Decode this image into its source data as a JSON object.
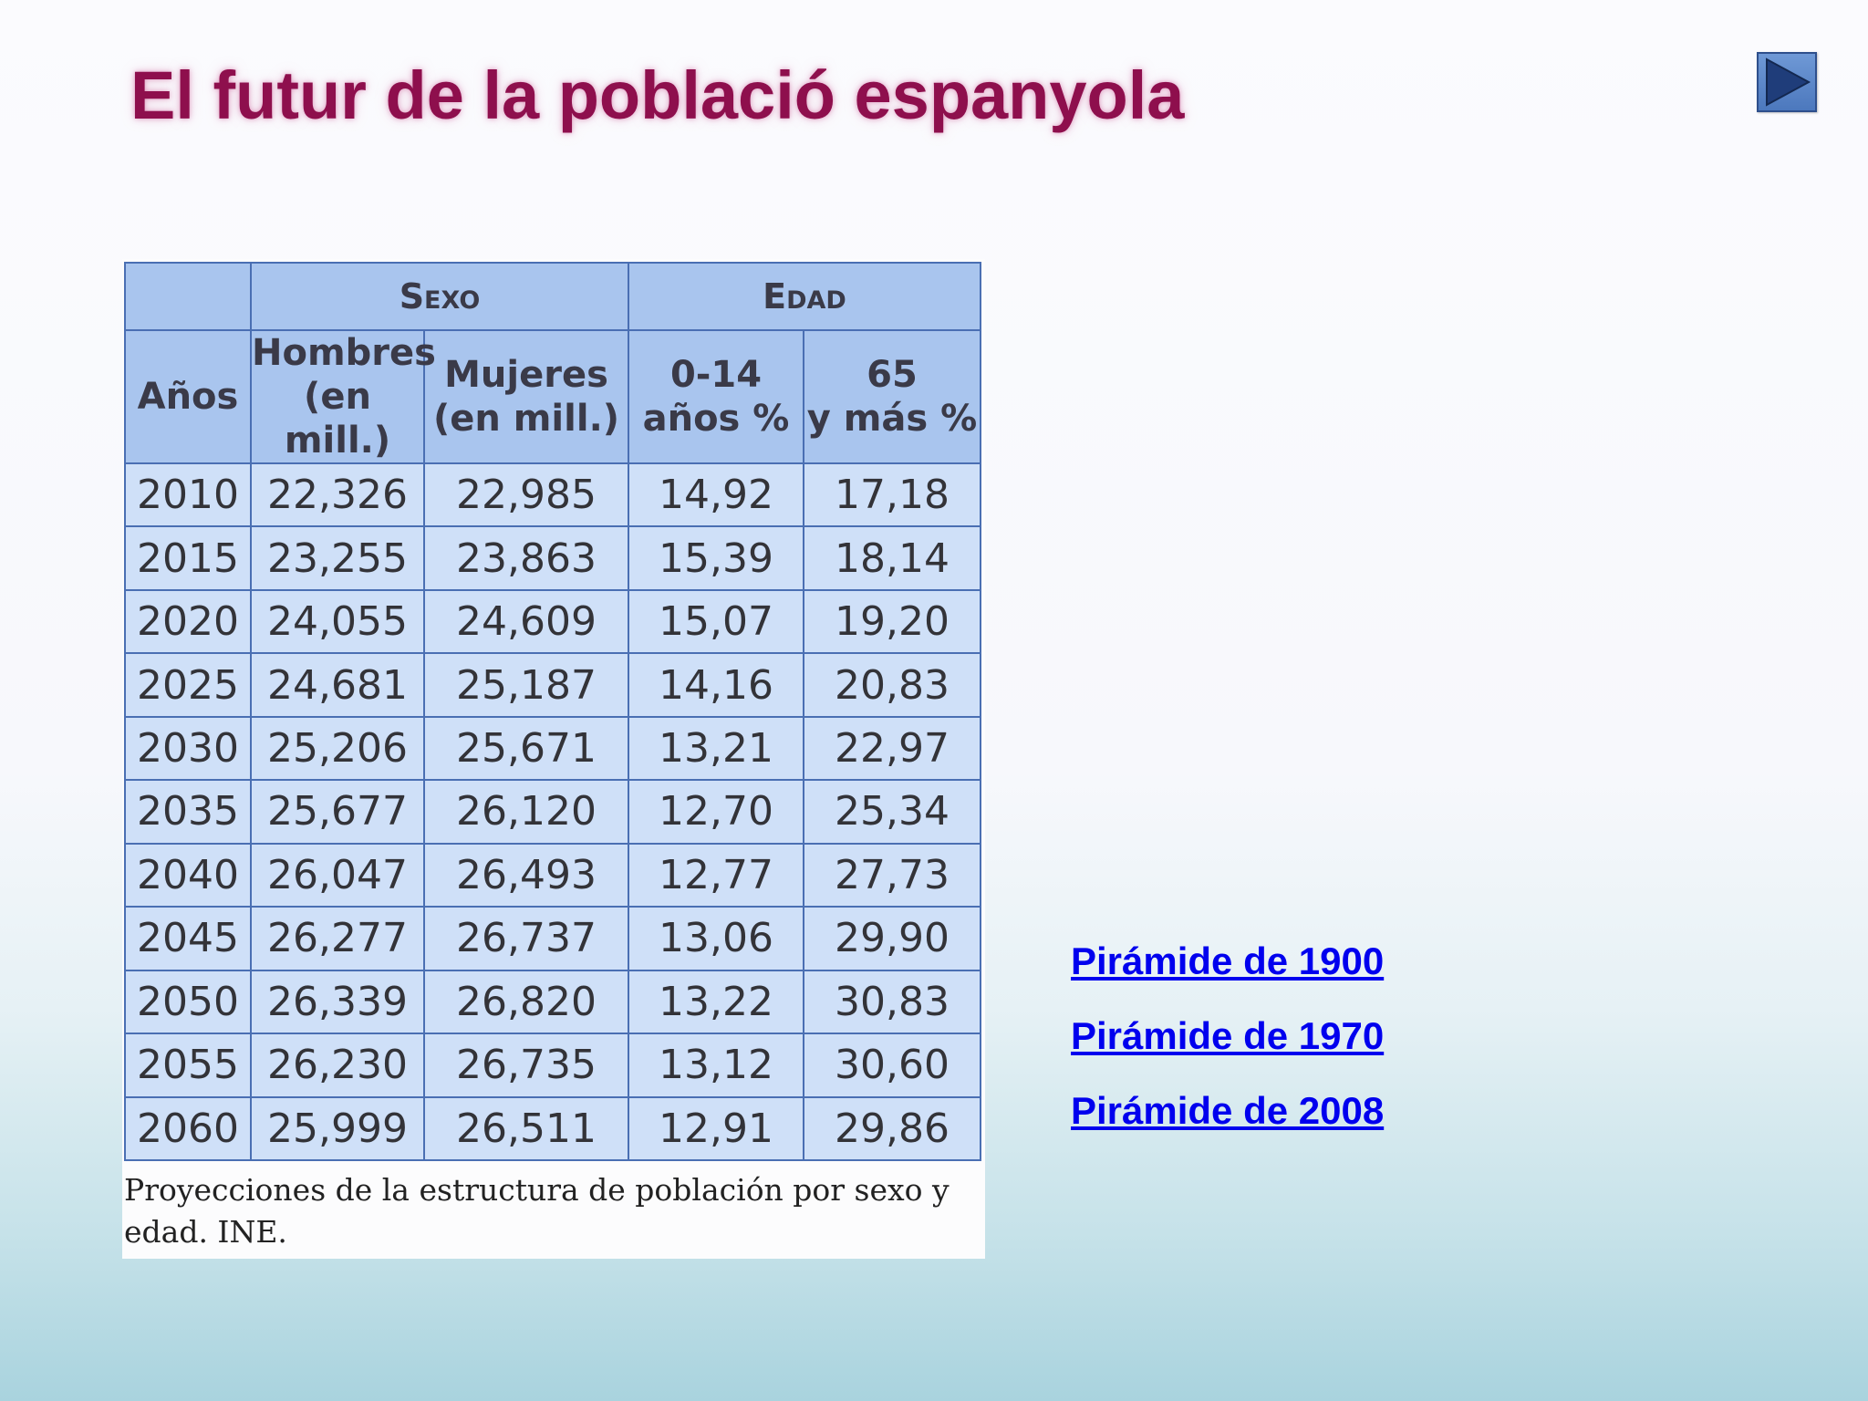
{
  "slide": {
    "title": "El futur de la població espanyola"
  },
  "nav": {
    "next_icon": "play-triangle-icon"
  },
  "table": {
    "group_headers": [
      "Sexo",
      "Edad"
    ],
    "columns": [
      "Años",
      "Hombres\n(en mill.)",
      "Mujeres\n(en mill.)",
      "0-14\naños %",
      "65\ny más %"
    ],
    "rows": [
      [
        "2010",
        "22,326",
        "22,985",
        "14,92",
        "17,18"
      ],
      [
        "2015",
        "23,255",
        "23,863",
        "15,39",
        "18,14"
      ],
      [
        "2020",
        "24,055",
        "24,609",
        "15,07",
        "19,20"
      ],
      [
        "2025",
        "24,681",
        "25,187",
        "14,16",
        "20,83"
      ],
      [
        "2030",
        "25,206",
        "25,671",
        "13,21",
        "22,97"
      ],
      [
        "2035",
        "25,677",
        "26,120",
        "12,70",
        "25,34"
      ],
      [
        "2040",
        "26,047",
        "26,493",
        "12,77",
        "27,73"
      ],
      [
        "2045",
        "26,277",
        "26,737",
        "13,06",
        "29,90"
      ],
      [
        "2050",
        "26,339",
        "26,820",
        "13,22",
        "30,83"
      ],
      [
        "2055",
        "26,230",
        "26,735",
        "13,12",
        "30,60"
      ],
      [
        "2060",
        "25,999",
        "26,511",
        "12,91",
        "29,86"
      ]
    ],
    "caption": "Proyecciones de la estructura de población por sexo y edad. INE."
  },
  "links": [
    {
      "label": "Pirámide de 1900"
    },
    {
      "label": "Pirámide de 1970"
    },
    {
      "label": "Pirámide de 2008"
    }
  ],
  "colors": {
    "title": "#8e0f4d",
    "link": "#0000ee",
    "table_header": "#a9c5ee",
    "table_body": "#cfe0f8",
    "table_border": "#4a6fb3"
  }
}
